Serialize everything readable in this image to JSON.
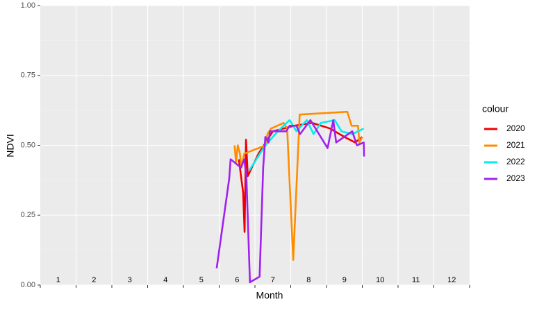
{
  "chart_data": {
    "type": "line",
    "xlabel": "Month",
    "ylabel": "NDVI",
    "legend_title": "colour",
    "month_labels": [
      "1",
      "2",
      "3",
      "4",
      "5",
      "6",
      "7",
      "8",
      "9",
      "10",
      "11",
      "12"
    ],
    "xlim": [
      0.5,
      12.5
    ],
    "xticks": [
      0.5,
      1.5,
      2.5,
      3.5,
      4.5,
      5.5,
      6.5,
      7.5,
      8.5,
      9.5,
      10.5,
      11.5,
      12.5
    ],
    "ylim": [
      0,
      1
    ],
    "yticks": [
      {
        "value": 0,
        "label": "0.00"
      },
      {
        "value": 0.25,
        "label": "0.25"
      },
      {
        "value": 0.5,
        "label": "0.50"
      },
      {
        "value": 0.75,
        "label": "0.75"
      },
      {
        "value": 1,
        "label": "1.00"
      }
    ],
    "grid": true,
    "series": [
      {
        "name": "2020",
        "color": "#ee0000",
        "x": [
          6.05,
          6.17,
          6.21,
          6.25,
          6.3,
          6.6,
          7.0,
          7.6,
          8.1,
          8.6,
          9.0,
          9.3,
          9.5
        ],
        "values": [
          0.45,
          0.33,
          0.19,
          0.52,
          0.39,
          0.47,
          0.55,
          0.57,
          0.58,
          0.56,
          0.53,
          0.51,
          0.53
        ]
      },
      {
        "name": "2021",
        "color": "#ff8c00",
        "x": [
          5.93,
          5.97,
          6.02,
          6.08,
          6.12,
          6.2,
          6.8,
          6.85,
          6.95,
          7.3,
          7.4,
          7.57,
          7.75,
          9.08,
          9.2,
          9.38,
          9.42,
          9.5
        ],
        "values": [
          0.5,
          0.44,
          0.5,
          0.47,
          0.42,
          0.47,
          0.5,
          0.54,
          0.56,
          0.58,
          0.56,
          0.09,
          0.61,
          0.62,
          0.57,
          0.57,
          0.51,
          0.53
        ]
      },
      {
        "name": "2022",
        "color": "#00eeee",
        "x": [
          6.34,
          6.79,
          7.14,
          7.47,
          7.66,
          7.95,
          8.14,
          8.34,
          8.73,
          8.92,
          9.22,
          9.54
        ],
        "values": [
          0.41,
          0.5,
          0.55,
          0.59,
          0.55,
          0.59,
          0.54,
          0.58,
          0.59,
          0.55,
          0.54,
          0.56
        ]
      },
      {
        "name": "2023",
        "color": "#a020f0",
        "x": [
          5.43,
          5.78,
          5.82,
          6.11,
          6.2,
          6.26,
          6.36,
          6.63,
          6.73,
          6.79,
          6.88,
          6.92,
          7.37,
          7.47,
          7.66,
          7.76,
          8.05,
          8.53,
          8.69,
          8.77,
          9.22,
          9.35,
          9.54,
          9.55
        ],
        "values": [
          0.06,
          0.38,
          0.45,
          0.42,
          0.45,
          0.39,
          0.01,
          0.03,
          0.42,
          0.53,
          0.51,
          0.55,
          0.55,
          0.57,
          0.57,
          0.54,
          0.59,
          0.49,
          0.59,
          0.51,
          0.55,
          0.5,
          0.51,
          0.46
        ]
      }
    ]
  }
}
